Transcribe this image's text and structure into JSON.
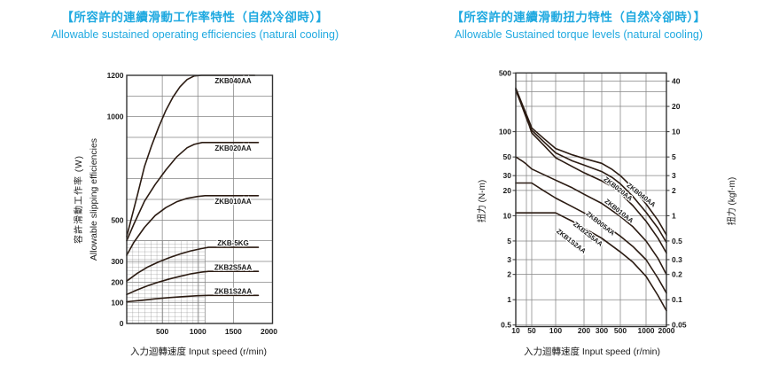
{
  "colors": {
    "accent": "#1fa9e0",
    "curve": "#2b1b12",
    "grid": "#858585",
    "frame": "#333333",
    "hatch": "#6a6a6a",
    "text": "#1a1a1a"
  },
  "chart_data": [
    {
      "type": "line",
      "title_zh": "【所容許的連續滑動工作率特性（自然冷卻時）】",
      "title_en": "Allowable sustained operating efficiencies (natural cooling)",
      "x_axis": {
        "label": "入力迴轉速度 Input speed (r/min)",
        "scale": "linear",
        "range": [
          0,
          2050
        ],
        "ticks": [
          500,
          1000,
          1500,
          2000
        ],
        "gridlines": [
          500,
          1000,
          1500
        ]
      },
      "y_axis": {
        "label_zh": "容許滑動工作率 (W)",
        "label_en": "Allowable slipping efficiencies",
        "scale": "linear",
        "range": [
          0,
          1200
        ],
        "ticks": [
          1200,
          1000,
          500,
          300,
          200,
          100,
          0
        ],
        "gridline_step": 100
      },
      "hatch_region": {
        "x": [
          0,
          1100
        ],
        "y": [
          0,
          400
        ]
      },
      "series": [
        {
          "name": "ZKB040AA",
          "points": [
            [
              0,
              420
            ],
            [
              60,
              500
            ],
            [
              150,
              620
            ],
            [
              250,
              760
            ],
            [
              350,
              860
            ],
            [
              450,
              950
            ],
            [
              550,
              1030
            ],
            [
              650,
              1095
            ],
            [
              750,
              1145
            ],
            [
              850,
              1180
            ],
            [
              950,
              1197
            ],
            [
              1050,
              1200
            ],
            [
              1800,
              1200
            ]
          ]
        },
        {
          "name": "ZKB020AA",
          "points": [
            [
              0,
              400
            ],
            [
              100,
              480
            ],
            [
              250,
              592
            ],
            [
              400,
              672
            ],
            [
              550,
              742
            ],
            [
              700,
              805
            ],
            [
              850,
              850
            ],
            [
              950,
              866
            ],
            [
              1060,
              875
            ],
            [
              1850,
              875
            ]
          ]
        },
        {
          "name": "ZKB010AA",
          "points": [
            [
              0,
              330
            ],
            [
              100,
              392
            ],
            [
              250,
              465
            ],
            [
              400,
              522
            ],
            [
              550,
              560
            ],
            [
              700,
              588
            ],
            [
              850,
              605
            ],
            [
              1000,
              614
            ],
            [
              1100,
              618
            ],
            [
              1850,
              618
            ]
          ]
        },
        {
          "name": "ZKB-5KG",
          "points": [
            [
              0,
              205
            ],
            [
              150,
              243
            ],
            [
              300,
              274
            ],
            [
              450,
              298
            ],
            [
              600,
              318
            ],
            [
              750,
              336
            ],
            [
              900,
              351
            ],
            [
              1050,
              362
            ],
            [
              1150,
              368
            ],
            [
              1850,
              368
            ]
          ]
        },
        {
          "name": "ZKB2S5AA",
          "points": [
            [
              0,
              140
            ],
            [
              150,
              163
            ],
            [
              300,
              183
            ],
            [
              450,
              200
            ],
            [
              600,
              215
            ],
            [
              750,
              228
            ],
            [
              900,
              240
            ],
            [
              1050,
              248
            ],
            [
              1150,
              252
            ],
            [
              1850,
              252
            ]
          ]
        },
        {
          "name": "ZKB1S2AA",
          "points": [
            [
              0,
              105
            ],
            [
              200,
              112
            ],
            [
              400,
              119
            ],
            [
              600,
              125
            ],
            [
              800,
              130
            ],
            [
              1000,
              134
            ],
            [
              1150,
              136
            ],
            [
              1850,
              136
            ]
          ]
        }
      ]
    },
    {
      "type": "line",
      "title_zh": "【所容許的連續滑動扭力特性（自然冷卻時）】",
      "title_en": "Allowable Sustained torque levels (natural cooling)",
      "x_axis": {
        "label": "入力迴轉速度 Input speed (r/min)",
        "scale": "log",
        "range": [
          10,
          2000
        ],
        "ticks": [
          10,
          50,
          100,
          200,
          300,
          500,
          1000,
          2000
        ],
        "gridlines": [
          10,
          30,
          50,
          100,
          200,
          300,
          500,
          1000,
          2000
        ]
      },
      "y_axis_left": {
        "label": "扭力 (N-m)",
        "scale": "log",
        "range": [
          0.5,
          500
        ],
        "ticks": [
          500,
          100,
          50,
          30,
          20,
          10,
          5,
          3,
          2,
          1,
          0.5
        ],
        "gridlines": [
          500,
          400,
          300,
          200,
          100,
          50,
          30,
          20,
          10,
          5,
          3,
          2,
          1,
          0.5
        ]
      },
      "y_axis_right": {
        "label": "扭力 (kgf-m)",
        "scale": "log",
        "ticks": [
          {
            "label": "40",
            "at_nm": 400
          },
          {
            "label": "20",
            "at_nm": 200
          },
          {
            "label": "10",
            "at_nm": 100
          },
          {
            "label": "5",
            "at_nm": 50
          },
          {
            "label": "3",
            "at_nm": 30
          },
          {
            "label": "2",
            "at_nm": 20
          },
          {
            "label": "1",
            "at_nm": 10
          },
          {
            "label": "0.5",
            "at_nm": 5
          },
          {
            "label": "0.3",
            "at_nm": 3
          },
          {
            "label": "0.2",
            "at_nm": 2
          },
          {
            "label": "0.1",
            "at_nm": 1
          },
          {
            "label": "0.05",
            "at_nm": 0.5
          }
        ]
      },
      "series": [
        {
          "name": "ZKB040AA",
          "points": [
            [
              10,
              330
            ],
            [
              15,
              253
            ],
            [
              20,
              208
            ],
            [
              30,
              160
            ],
            [
              40,
              131
            ],
            [
              50,
              111
            ],
            [
              70,
              84
            ],
            [
              100,
              63
            ],
            [
              150,
              53
            ],
            [
              200,
              48
            ],
            [
              300,
              42
            ],
            [
              400,
              35.5
            ],
            [
              500,
              30
            ],
            [
              700,
              21.5
            ],
            [
              1000,
              13.8
            ],
            [
              1500,
              8.8
            ],
            [
              2000,
              5.9
            ]
          ]
        },
        {
          "name": "ZKB020AA",
          "points": [
            [
              10,
              321
            ],
            [
              15,
              245
            ],
            [
              20,
              200
            ],
            [
              30,
              152
            ],
            [
              40,
              124
            ],
            [
              50,
              104
            ],
            [
              70,
              77
            ],
            [
              100,
              56
            ],
            [
              150,
              45
            ],
            [
              200,
              40
            ],
            [
              300,
              33.5
            ],
            [
              400,
              28.5
            ],
            [
              500,
              24
            ],
            [
              700,
              17
            ],
            [
              1000,
              11
            ],
            [
              1500,
              7.1
            ],
            [
              2000,
              4.8
            ]
          ]
        },
        {
          "name": "ZKB010AA",
          "points": [
            [
              10,
              312
            ],
            [
              15,
              237
            ],
            [
              20,
              193
            ],
            [
              30,
              145
            ],
            [
              40,
              117
            ],
            [
              50,
              97
            ],
            [
              70,
              70
            ],
            [
              100,
              49
            ],
            [
              150,
              38.5
            ],
            [
              200,
              32.5
            ],
            [
              300,
              26
            ],
            [
              400,
              22
            ],
            [
              500,
              18.5
            ],
            [
              700,
              13.2
            ],
            [
              1000,
              8.6
            ],
            [
              1500,
              5.4
            ],
            [
              2000,
              3.6
            ]
          ]
        },
        {
          "name": "ZKB005AA",
          "points": [
            [
              10,
              50
            ],
            [
              20,
              44.5
            ],
            [
              30,
              41
            ],
            [
              50,
              36
            ],
            [
              70,
              31
            ],
            [
              100,
              26.5
            ],
            [
              150,
              21.5
            ],
            [
              200,
              18
            ],
            [
              300,
              14
            ],
            [
              500,
              9.8
            ],
            [
              700,
              7.4
            ],
            [
              1000,
              5.0
            ],
            [
              1500,
              3.1
            ],
            [
              2000,
              2.0
            ]
          ]
        },
        {
          "name": "ZKB2S5AA",
          "points": [
            [
              10,
              24.5
            ],
            [
              50,
              24.5
            ],
            [
              70,
              20
            ],
            [
              100,
              16.2
            ],
            [
              150,
              12.8
            ],
            [
              200,
              10.8
            ],
            [
              300,
              8.2
            ],
            [
              500,
              5.7
            ],
            [
              700,
              4.3
            ],
            [
              1000,
              3.0
            ],
            [
              1500,
              1.8
            ],
            [
              2000,
              1.2
            ]
          ]
        },
        {
          "name": "ZKB1S2AA",
          "points": [
            [
              10,
              10.8
            ],
            [
              100,
              10.8
            ],
            [
              150,
              8.6
            ],
            [
              200,
              7.1
            ],
            [
              300,
              5.4
            ],
            [
              500,
              3.7
            ],
            [
              700,
              2.8
            ],
            [
              1000,
              1.9
            ],
            [
              1500,
              1.12
            ],
            [
              2000,
              0.74
            ]
          ]
        }
      ]
    }
  ]
}
